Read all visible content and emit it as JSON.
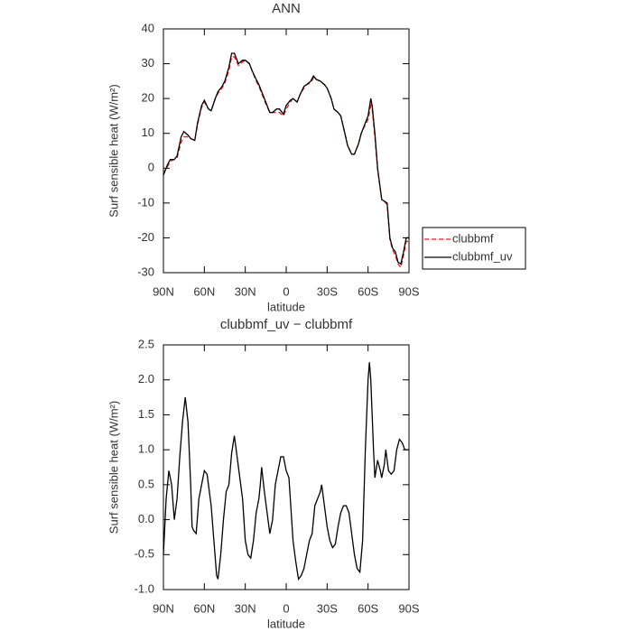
{
  "chart_data": [
    {
      "type": "line",
      "title": "ANN",
      "xlabel": "latitude",
      "ylabel": "Surf sensible heat (W/m²)",
      "xlim": [
        90,
        -90
      ],
      "ylim": [
        -30,
        40
      ],
      "xticks": [
        {
          "value": 90,
          "label": "90N"
        },
        {
          "value": 60,
          "label": "60N"
        },
        {
          "value": 30,
          "label": "30N"
        },
        0,
        {
          "value": -30,
          "label": "30S"
        },
        {
          "value": -60,
          "label": "60S"
        },
        {
          "value": -90,
          "label": "90S"
        }
      ],
      "yticks": [
        -30,
        -20,
        -10,
        0,
        10,
        20,
        30,
        40
      ],
      "legend": "right",
      "x": [
        90,
        87,
        85,
        82,
        80,
        77,
        75,
        72,
        70,
        67,
        65,
        62,
        60,
        57,
        55,
        52,
        50,
        47,
        45,
        42,
        40,
        38,
        35,
        32,
        30,
        27,
        25,
        22,
        20,
        17,
        15,
        12,
        10,
        7,
        5,
        2,
        0,
        -3,
        -5,
        -8,
        -10,
        -13,
        -15,
        -18,
        -20,
        -22,
        -25,
        -28,
        -30,
        -33,
        -35,
        -38,
        -40,
        -43,
        -45,
        -48,
        -50,
        -53,
        -55,
        -58,
        -60,
        -62,
        -63,
        -65,
        -67,
        -70,
        -72,
        -74,
        -76,
        -78,
        -80,
        -82,
        -84,
        -86,
        -88,
        -90
      ],
      "series": [
        {
          "name": "clubbmf",
          "color": "#e41a1c",
          "linestyle": "dashed",
          "values": [
            -1.5,
            0.5,
            2,
            2.5,
            3,
            7.5,
            9,
            9,
            8.5,
            8,
            12.5,
            17.5,
            19,
            17,
            16.5,
            20,
            21.5,
            23,
            24.5,
            28,
            32,
            32,
            29.5,
            30.5,
            31,
            30,
            28,
            25,
            23.5,
            20.5,
            18.5,
            16,
            16,
            16,
            16,
            15,
            17,
            19,
            20,
            19,
            21,
            23,
            24,
            24.5,
            26,
            25.5,
            25,
            24,
            23,
            20,
            17,
            16,
            15,
            10,
            6.5,
            4,
            4,
            7,
            10,
            12.5,
            14,
            18,
            17,
            9,
            -0.5,
            -9,
            -9.5,
            -10.5,
            -20.5,
            -23.5,
            -25,
            -27.5,
            -28.5,
            -25,
            -21,
            -21
          ]
        },
        {
          "name": "clubbmf_uv",
          "color": "#000000",
          "linestyle": "solid",
          "values": [
            -2,
            1,
            2.5,
            2.5,
            3.5,
            9,
            10.5,
            9.5,
            8.5,
            8,
            13,
            18,
            19.5,
            17,
            16.5,
            20,
            22,
            23.5,
            25,
            29,
            33,
            33,
            30,
            31,
            31,
            30,
            28,
            25.5,
            24,
            21,
            19,
            16,
            16,
            17,
            17,
            15.5,
            18,
            19.5,
            20,
            19,
            21,
            23.5,
            24,
            25,
            26.5,
            25.5,
            25,
            24,
            23,
            20,
            17,
            16,
            15,
            10,
            6.5,
            4,
            4,
            7,
            10,
            13,
            15,
            20,
            18,
            10,
            0,
            -9,
            -9.5,
            -10,
            -20,
            -23,
            -24,
            -27,
            -27.5,
            -24,
            -20,
            -20
          ]
        }
      ]
    },
    {
      "type": "line",
      "title": "clubbmf_uv − clubbmf",
      "xlabel": "latitude",
      "ylabel": "Surf sensible heat (W/m²)",
      "xlim": [
        90,
        -90
      ],
      "ylim": [
        -1,
        2.5
      ],
      "xticks": [
        {
          "value": 90,
          "label": "90N"
        },
        {
          "value": 60,
          "label": "60N"
        },
        {
          "value": 30,
          "label": "30N"
        },
        0,
        {
          "value": -30,
          "label": "30S"
        },
        {
          "value": -60,
          "label": "60S"
        },
        {
          "value": -90,
          "label": "90S"
        }
      ],
      "yticks": [
        {
          "value": -1,
          "label": "-1.0"
        },
        -0.5,
        {
          "value": 0,
          "label": "0.0"
        },
        0.5,
        {
          "value": 1,
          "label": "1.0"
        },
        1.5,
        {
          "value": 2,
          "label": "2.0"
        },
        2.5
      ],
      "color": "#000000",
      "x": [
        90,
        88,
        86,
        84,
        82,
        80,
        78,
        76,
        74,
        72,
        70,
        69,
        68,
        66,
        64,
        62,
        60,
        58,
        57,
        55,
        53,
        51,
        50,
        48,
        46,
        44,
        42,
        40,
        38,
        36,
        34,
        32,
        30,
        28,
        26,
        24,
        22,
        20,
        19,
        18,
        16,
        14,
        12,
        10,
        8,
        6,
        4,
        2,
        0,
        -2,
        -3,
        -5,
        -7,
        -9,
        -11,
        -13,
        -15,
        -17,
        -19,
        -21,
        -23,
        -25,
        -26,
        -28,
        -30,
        -32,
        -34,
        -36,
        -38,
        -40,
        -42,
        -44,
        -46,
        -48,
        -50,
        -52,
        -54,
        -56,
        -58,
        -60,
        -61,
        -62,
        -64,
        -65,
        -67,
        -69,
        -70,
        -72,
        -73,
        -75,
        -77,
        -79,
        -81,
        -83,
        -85,
        -87,
        -90
      ],
      "values": [
        -0.5,
        0.3,
        0.7,
        0.5,
        0.0,
        0.3,
        0.9,
        1.4,
        1.75,
        1.4,
        0.5,
        -0.1,
        -0.15,
        -0.2,
        0.3,
        0.5,
        0.7,
        0.65,
        0.5,
        0.2,
        -0.3,
        -0.8,
        -0.85,
        -0.5,
        0.0,
        0.4,
        0.5,
        0.95,
        1.2,
        0.9,
        0.6,
        0.3,
        -0.3,
        -0.5,
        -0.55,
        -0.3,
        0.1,
        0.3,
        0.5,
        0.75,
        0.4,
        0.1,
        -0.2,
        0.0,
        0.5,
        0.7,
        0.9,
        0.9,
        0.7,
        0.6,
        0.3,
        -0.3,
        -0.6,
        -0.85,
        -0.8,
        -0.7,
        -0.5,
        -0.3,
        -0.2,
        0.2,
        0.3,
        0.4,
        0.5,
        0.2,
        -0.1,
        -0.3,
        -0.4,
        -0.35,
        -0.1,
        0.1,
        0.2,
        0.2,
        0.1,
        -0.2,
        -0.5,
        -0.7,
        -0.75,
        -0.3,
        1.0,
        2.0,
        2.25,
        2.0,
        1.0,
        0.6,
        0.85,
        0.7,
        0.6,
        0.8,
        1.0,
        0.7,
        0.65,
        0.7,
        1.0,
        1.15,
        1.1,
        1.0,
        1.0
      ]
    }
  ]
}
